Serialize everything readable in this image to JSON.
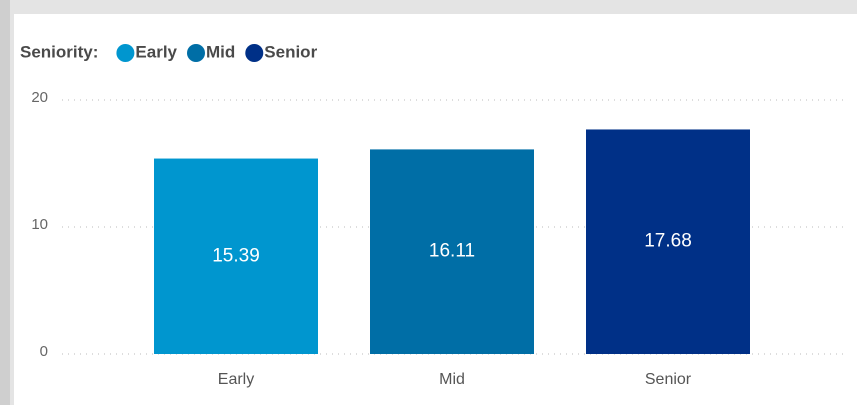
{
  "chart_data": {
    "type": "bar",
    "legend_title": "Seniority:",
    "categories": [
      "Early",
      "Mid",
      "Senior"
    ],
    "values": [
      15.39,
      16.11,
      17.68
    ],
    "colors": [
      "#0096cf",
      "#006ea6",
      "#003087"
    ],
    "ylim": [
      0,
      20
    ],
    "yticks": [
      0,
      10,
      20
    ],
    "grid": true,
    "legend": "top-left"
  }
}
